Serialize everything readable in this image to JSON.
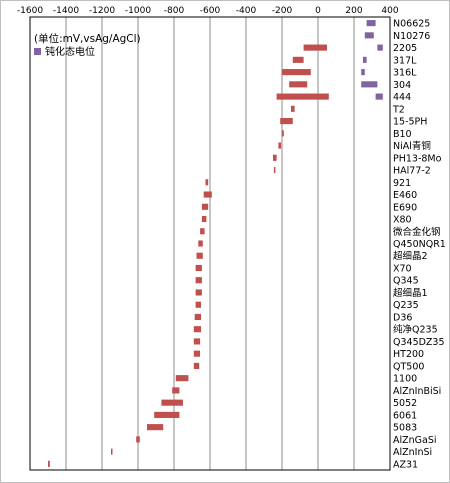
{
  "chart_data": {
    "type": "bar",
    "title": "",
    "subtitle": "",
    "unit_note": "(单位:mV,vsAg/AgCl)",
    "xlabel": "",
    "ylabel": "",
    "xlim": [
      -1600,
      400
    ],
    "xticks": [
      -1600,
      -1400,
      -1200,
      -1000,
      -800,
      -600,
      -400,
      -200,
      0,
      200,
      400
    ],
    "grid": true,
    "legend": {
      "position": "top-left",
      "entries": [
        {
          "name": "钝化态电位",
          "color": "#8064a2"
        }
      ]
    },
    "colors": {
      "active": "#c0504d",
      "passive": "#8064a2"
    },
    "categories": [
      "N06625",
      "N10276",
      "2205",
      "317L",
      "316L",
      "304",
      "444",
      "T2",
      "15-5PH",
      "B10",
      "NiAl青铜",
      "PH13-8Mo",
      "HAl77-2",
      "921",
      "E460",
      "E690",
      "X80",
      "微合金化钢",
      "Q450NQR1",
      "超细晶2",
      "X70",
      "Q345",
      "超细晶1",
      "Q235",
      "D36",
      "纯净Q235",
      "Q345DZ35",
      "HT200",
      "QT500",
      "1100",
      "AlZnInBiSi",
      "5052",
      "6061",
      "5083",
      "AlZnGaSi",
      "AlZnInSi",
      "AZ31"
    ],
    "series": [
      {
        "name": "",
        "color": "#c0504d",
        "ranges": [
          null,
          null,
          [
            -80,
            50
          ],
          [
            -140,
            -80
          ],
          [
            -200,
            -40
          ],
          [
            -160,
            -60
          ],
          [
            -230,
            60
          ],
          [
            -150,
            -130
          ],
          [
            -210,
            -140
          ],
          [
            -200,
            -190
          ],
          [
            -220,
            -205
          ],
          [
            -250,
            -230
          ],
          [
            -245,
            -240
          ],
          [
            -625,
            -610
          ],
          [
            -635,
            -590
          ],
          [
            -645,
            -610
          ],
          [
            -645,
            -620
          ],
          [
            -655,
            -630
          ],
          [
            -665,
            -640
          ],
          [
            -675,
            -640
          ],
          [
            -680,
            -645
          ],
          [
            -680,
            -645
          ],
          [
            -680,
            -645
          ],
          [
            -680,
            -650
          ],
          [
            -685,
            -650
          ],
          [
            -690,
            -650
          ],
          [
            -690,
            -655
          ],
          [
            -690,
            -655
          ],
          [
            -690,
            -660
          ],
          [
            -790,
            -720
          ],
          [
            -810,
            -770
          ],
          [
            -870,
            -750
          ],
          [
            -910,
            -770
          ],
          [
            -950,
            -860
          ],
          [
            -1010,
            -990
          ],
          [
            -1150,
            -1145
          ],
          [
            -1500,
            -1490
          ]
        ]
      },
      {
        "name": "钝化态电位",
        "color": "#8064a2",
        "ranges": [
          [
            270,
            320
          ],
          [
            260,
            310
          ],
          [
            330,
            360
          ],
          [
            250,
            270
          ],
          [
            240,
            260
          ],
          [
            240,
            330
          ],
          [
            320,
            360
          ],
          null,
          null,
          null,
          null,
          null,
          null,
          null,
          null,
          null,
          null,
          null,
          null,
          null,
          null,
          null,
          null,
          null,
          null,
          null,
          null,
          null,
          null,
          null,
          null,
          null,
          null,
          null,
          null,
          null,
          null
        ]
      }
    ]
  }
}
